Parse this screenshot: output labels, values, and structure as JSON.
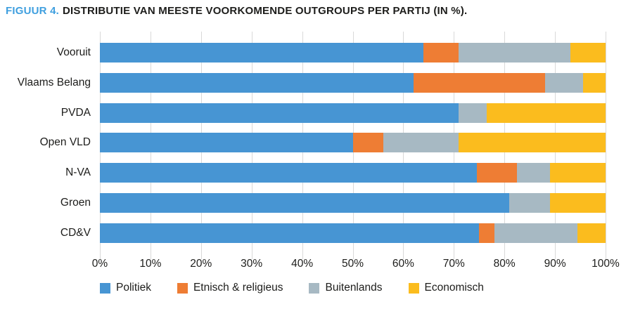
{
  "title": {
    "prefix": "FIGUUR 4.",
    "text": "DISTRIBUTIE VAN MEESTE VOORKOMENDE OUTGROUPS PER PARTIJ (IN %).",
    "prefix_color": "#3f9fdf",
    "text_color": "#1d1d1b"
  },
  "chart_data": {
    "type": "bar",
    "orientation": "horizontal",
    "stacked": true,
    "title": "FIGUUR 4. DISTRIBUTIE VAN MEESTE VOORKOMENDE OUTGROUPS PER PARTIJ (IN %).",
    "categories": [
      "Vooruit",
      "Vlaams Belang",
      "PVDA",
      "Open VLD",
      "N-VA",
      "Groen",
      "CD&V"
    ],
    "series": [
      {
        "name": "Politiek",
        "color": "#4795d3",
        "values": [
          64,
          62,
          71,
          50,
          74.5,
          81,
          75
        ]
      },
      {
        "name": "Etnisch & religieus",
        "color": "#ee7d34",
        "values": [
          7,
          26,
          0,
          6,
          8,
          0,
          3
        ]
      },
      {
        "name": "Buitenlands",
        "color": "#a7b9c3",
        "values": [
          22,
          7.5,
          5.5,
          15,
          6.5,
          8,
          16.5
        ]
      },
      {
        "name": "Economisch",
        "color": "#fbbc1e",
        "values": [
          7,
          4.5,
          23.5,
          29,
          11,
          11,
          5.5
        ]
      }
    ],
    "x_ticks": [
      "0%",
      "10%",
      "20%",
      "30%",
      "40%",
      "50%",
      "60%",
      "70%",
      "80%",
      "90%",
      "100%"
    ],
    "xlim": [
      0,
      100
    ],
    "xlabel": "",
    "ylabel": "",
    "grid": "vertical",
    "gridline_color": "#d9d9d9",
    "legend_position": "bottom"
  }
}
